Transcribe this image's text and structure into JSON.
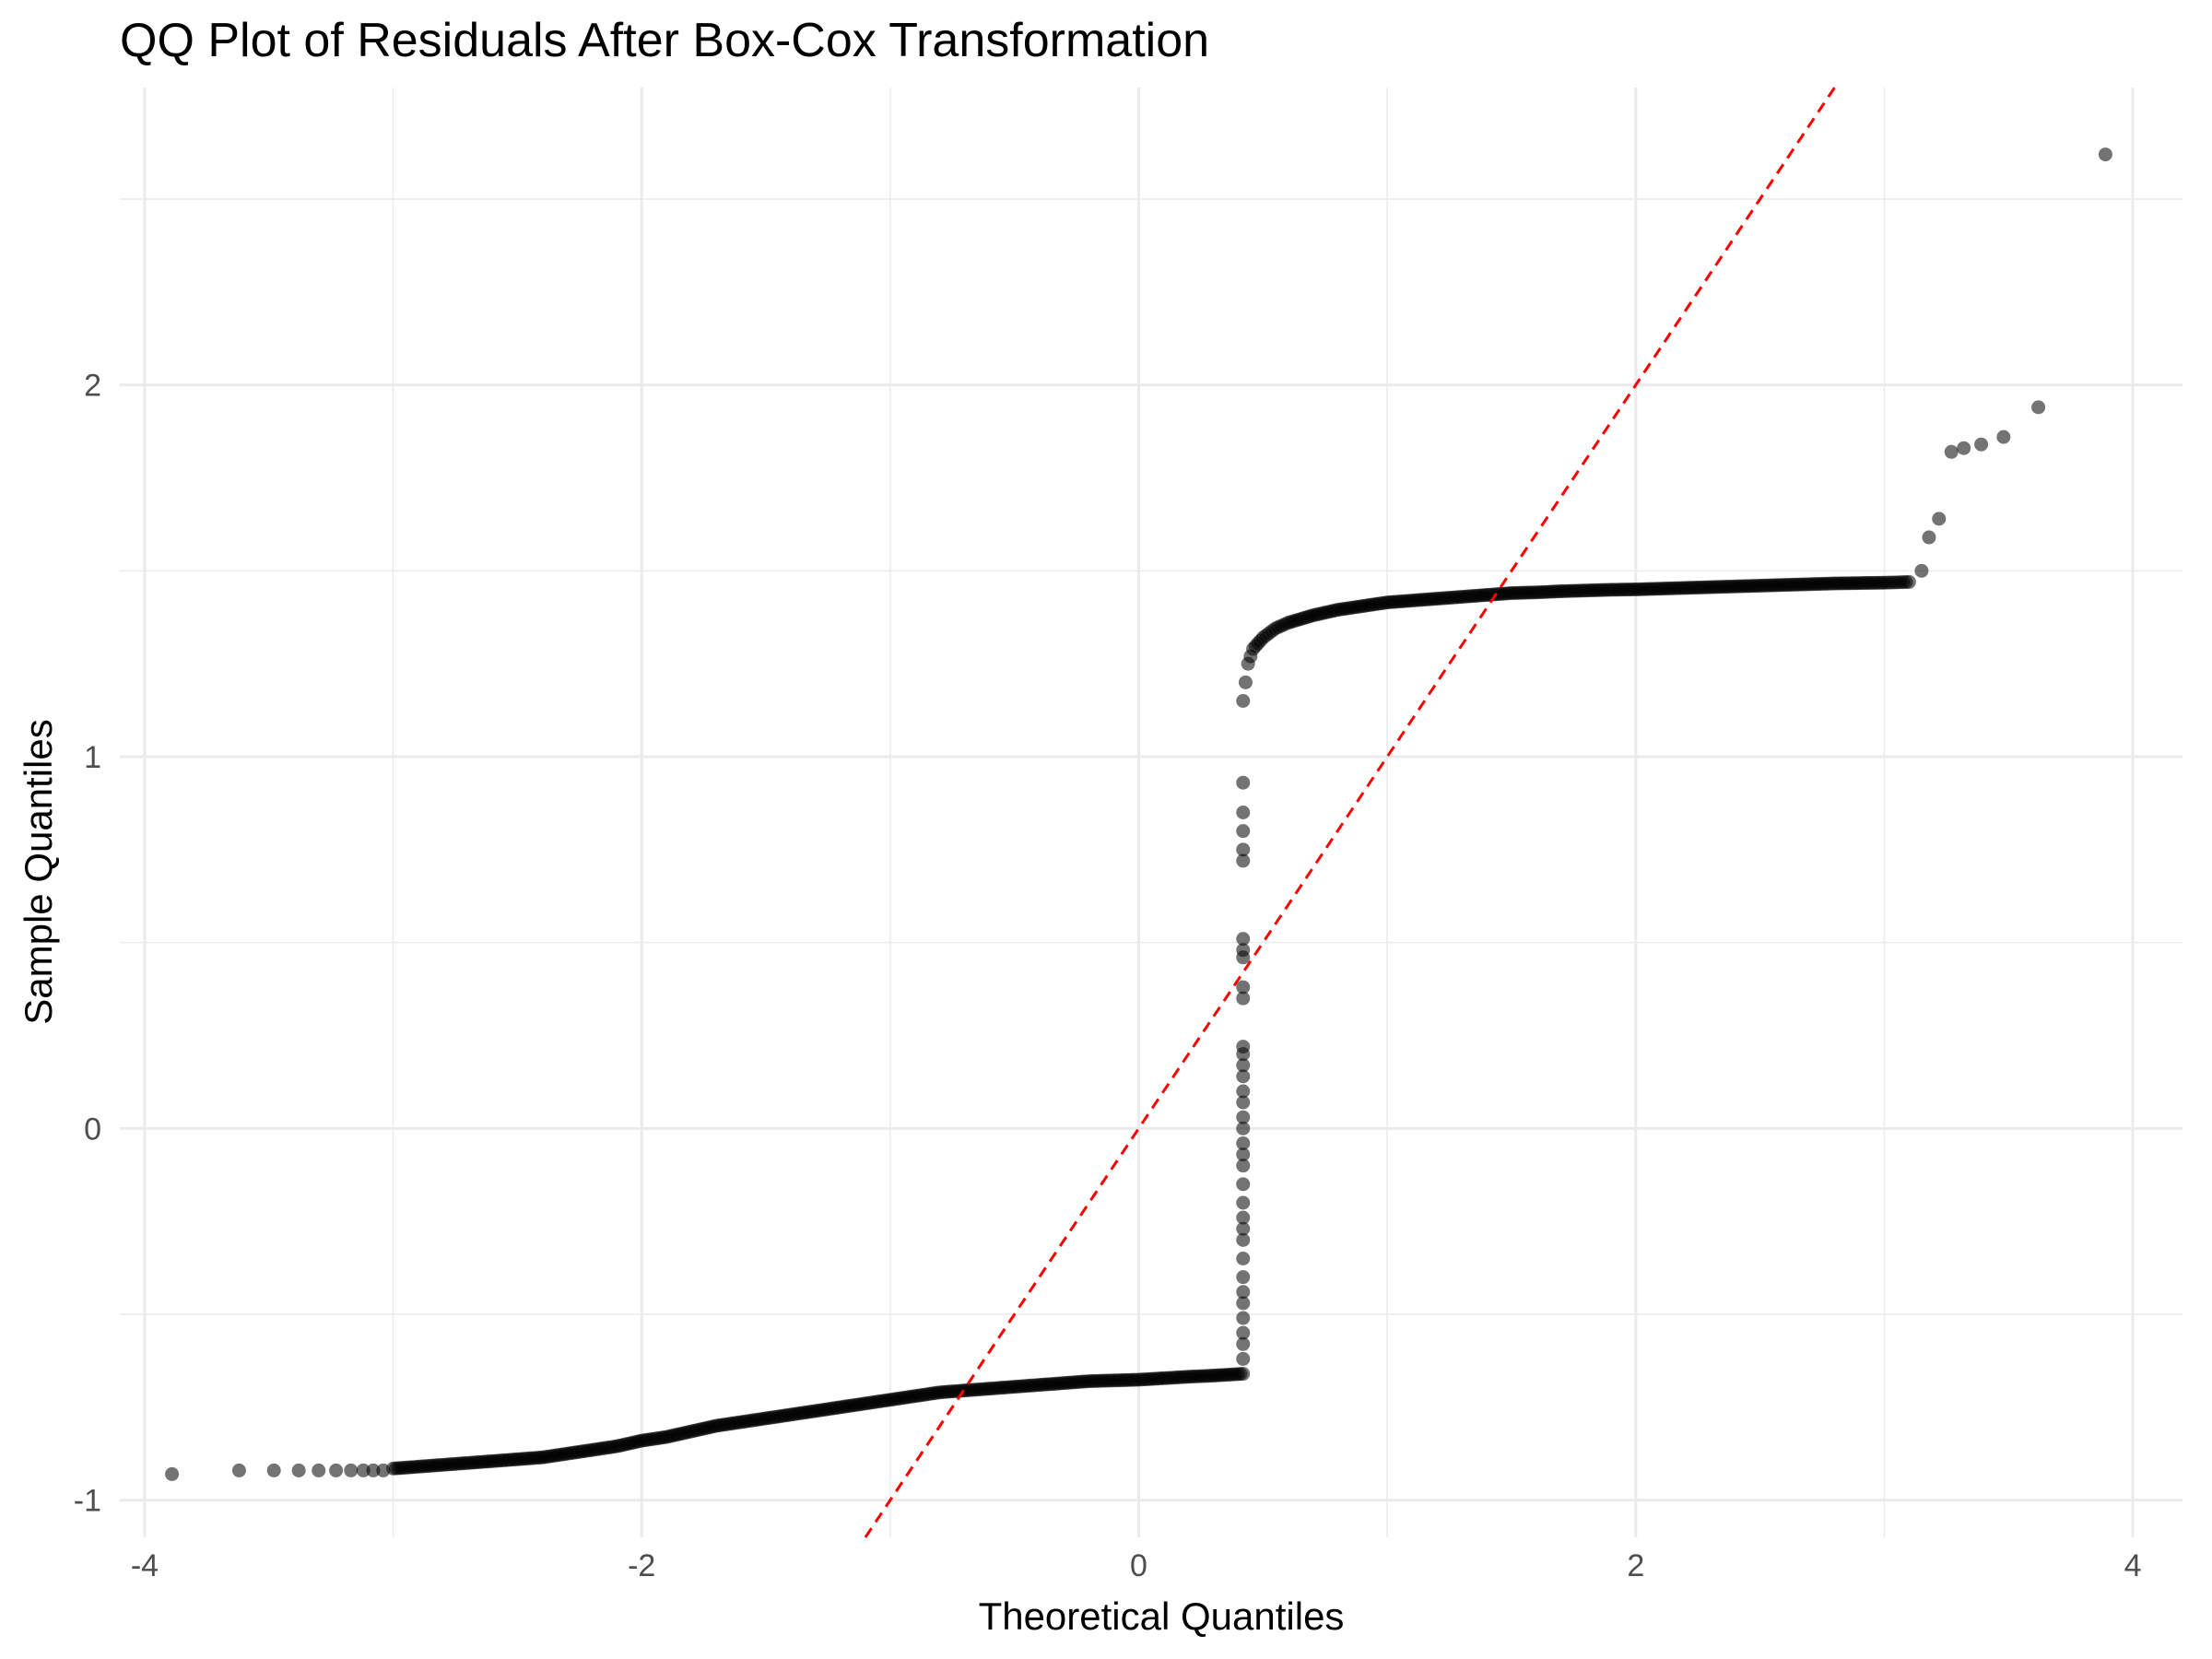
{
  "chart_data": {
    "type": "scatter",
    "title": "QQ Plot of Residuals After Box-Cox Transformation",
    "xlabel": "Theoretical Quantiles",
    "ylabel": "Sample Quantiles",
    "xlim": [
      -4.1,
      4.2
    ],
    "ylim": [
      -1.1,
      2.8
    ],
    "x_ticks": [
      -4,
      -2,
      0,
      2,
      4
    ],
    "x_tick_labels": [
      "-4",
      "-2",
      "0",
      "2",
      "4"
    ],
    "y_ticks": [
      -1,
      0,
      1,
      2
    ],
    "y_tick_labels": [
      "-1",
      "0",
      "1",
      "2"
    ],
    "grid": true,
    "colors": {
      "points": "#000000",
      "reference_line": "#ff0000",
      "grid": "#ebebeb"
    },
    "reference_line": {
      "slope": 1,
      "intercept": 0,
      "style": "dashed",
      "color": "#ff0000"
    },
    "points": [
      [
        -3.89,
        -0.93
      ],
      [
        -3.62,
        -0.92
      ],
      [
        -3.48,
        -0.92
      ],
      [
        -3.38,
        -0.92
      ],
      [
        -3.3,
        -0.92
      ],
      [
        -3.23,
        -0.92
      ],
      [
        -3.17,
        -0.92
      ],
      [
        -3.12,
        -0.92
      ],
      [
        -3.08,
        -0.92
      ],
      [
        -3.04,
        -0.92
      ],
      [
        -3.0,
        -0.915
      ],
      [
        -2.9,
        -0.91
      ],
      [
        -2.8,
        -0.905
      ],
      [
        -2.7,
        -0.9
      ],
      [
        -2.6,
        -0.895
      ],
      [
        -2.5,
        -0.89
      ],
      [
        -2.4,
        -0.885
      ],
      [
        -2.3,
        -0.875
      ],
      [
        -2.2,
        -0.865
      ],
      [
        -2.1,
        -0.855
      ],
      [
        -2.0,
        -0.84
      ],
      [
        -1.9,
        -0.83
      ],
      [
        -1.8,
        -0.815
      ],
      [
        -1.7,
        -0.8
      ],
      [
        -1.6,
        -0.79
      ],
      [
        -1.5,
        -0.78
      ],
      [
        -1.4,
        -0.77
      ],
      [
        -1.3,
        -0.76
      ],
      [
        -1.2,
        -0.75
      ],
      [
        -1.1,
        -0.74
      ],
      [
        -1.0,
        -0.73
      ],
      [
        -0.9,
        -0.72
      ],
      [
        -0.8,
        -0.71
      ],
      [
        -0.7,
        -0.705
      ],
      [
        -0.6,
        -0.7
      ],
      [
        -0.5,
        -0.695
      ],
      [
        -0.4,
        -0.69
      ],
      [
        -0.3,
        -0.685
      ],
      [
        -0.2,
        -0.68
      ],
      [
        -0.1,
        -0.678
      ],
      [
        0.0,
        -0.676
      ],
      [
        0.1,
        -0.672
      ],
      [
        0.2,
        -0.668
      ],
      [
        0.3,
        -0.665
      ],
      [
        0.42,
        -0.66
      ],
      [
        0.42,
        -0.62
      ],
      [
        0.42,
        -0.58
      ],
      [
        0.42,
        -0.55
      ],
      [
        0.42,
        -0.51
      ],
      [
        0.42,
        -0.47
      ],
      [
        0.42,
        -0.44
      ],
      [
        0.42,
        -0.4
      ],
      [
        0.42,
        -0.35
      ],
      [
        0.42,
        -0.3
      ],
      [
        0.42,
        -0.27
      ],
      [
        0.42,
        -0.24
      ],
      [
        0.42,
        -0.2
      ],
      [
        0.42,
        -0.15
      ],
      [
        0.42,
        -0.1
      ],
      [
        0.42,
        -0.07
      ],
      [
        0.42,
        -0.04
      ],
      [
        0.42,
        0.0
      ],
      [
        0.42,
        0.03
      ],
      [
        0.42,
        0.07
      ],
      [
        0.42,
        0.1
      ],
      [
        0.42,
        0.14
      ],
      [
        0.42,
        0.17
      ],
      [
        0.42,
        0.2
      ],
      [
        0.42,
        0.22
      ],
      [
        0.42,
        0.35
      ],
      [
        0.42,
        0.38
      ],
      [
        0.42,
        0.46
      ],
      [
        0.42,
        0.48
      ],
      [
        0.42,
        0.51
      ],
      [
        0.42,
        0.72
      ],
      [
        0.42,
        0.75
      ],
      [
        0.42,
        0.8
      ],
      [
        0.42,
        0.85
      ],
      [
        0.42,
        0.93
      ],
      [
        0.42,
        1.15
      ],
      [
        0.43,
        1.2
      ],
      [
        0.44,
        1.25
      ],
      [
        0.46,
        1.29
      ],
      [
        0.5,
        1.32
      ],
      [
        0.55,
        1.345
      ],
      [
        0.6,
        1.36
      ],
      [
        0.7,
        1.38
      ],
      [
        0.8,
        1.395
      ],
      [
        0.9,
        1.405
      ],
      [
        1.0,
        1.415
      ],
      [
        1.1,
        1.42
      ],
      [
        1.2,
        1.425
      ],
      [
        1.3,
        1.43
      ],
      [
        1.4,
        1.435
      ],
      [
        1.5,
        1.44
      ],
      [
        1.6,
        1.442
      ],
      [
        1.7,
        1.445
      ],
      [
        1.8,
        1.447
      ],
      [
        1.9,
        1.449
      ],
      [
        2.0,
        1.45
      ],
      [
        2.1,
        1.452
      ],
      [
        2.2,
        1.454
      ],
      [
        2.3,
        1.456
      ],
      [
        2.4,
        1.458
      ],
      [
        2.5,
        1.46
      ],
      [
        2.6,
        1.462
      ],
      [
        2.7,
        1.464
      ],
      [
        2.8,
        1.466
      ],
      [
        2.9,
        1.467
      ],
      [
        3.0,
        1.468
      ],
      [
        3.05,
        1.469
      ],
      [
        3.1,
        1.47
      ],
      [
        3.15,
        1.5
      ],
      [
        3.18,
        1.59
      ],
      [
        3.22,
        1.64
      ],
      [
        3.27,
        1.82
      ],
      [
        3.32,
        1.83
      ],
      [
        3.39,
        1.84
      ],
      [
        3.48,
        1.86
      ],
      [
        3.62,
        1.94
      ],
      [
        3.89,
        2.62
      ]
    ]
  }
}
